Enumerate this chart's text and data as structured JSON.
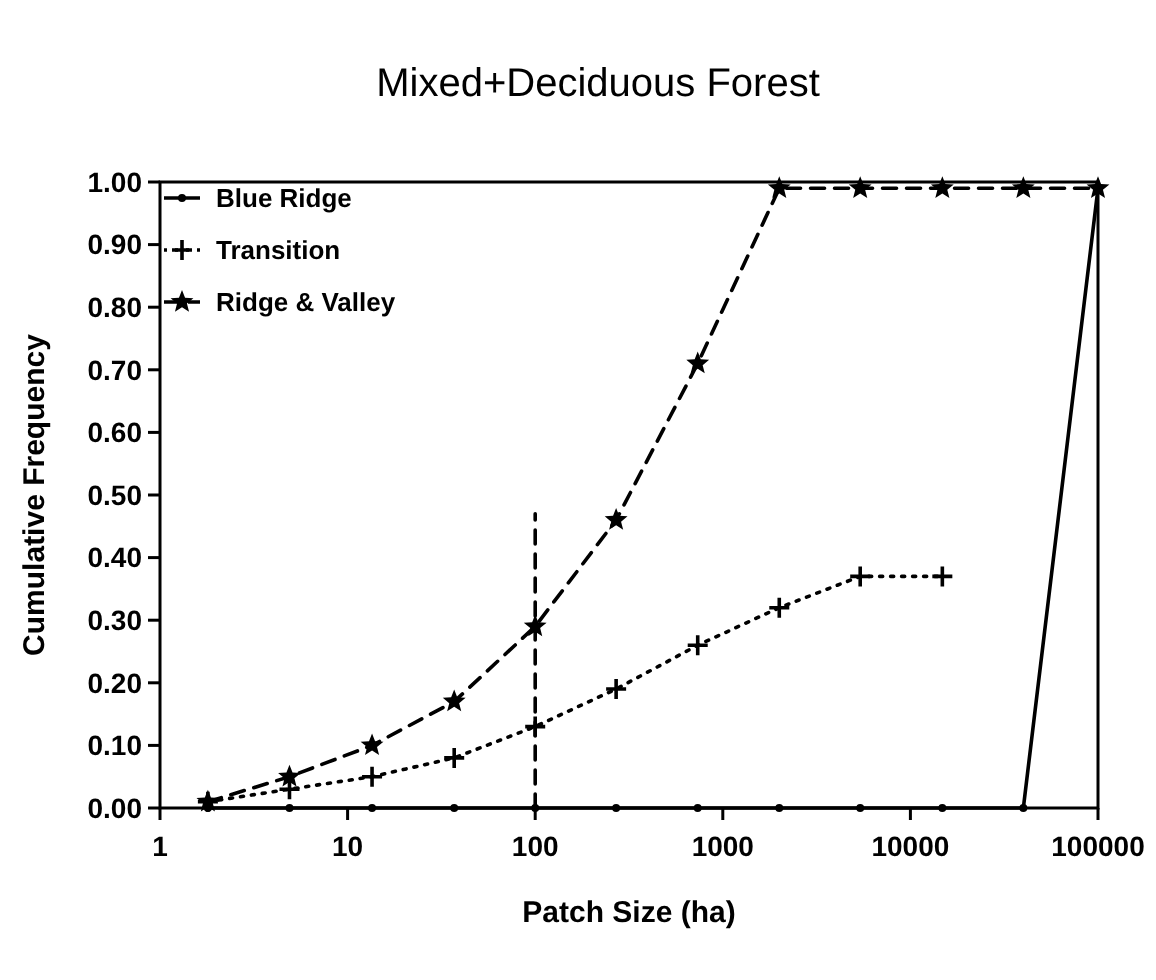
{
  "chart_data": {
    "type": "line",
    "title": "Mixed+Deciduous Forest",
    "xlabel": "Patch Size (ha)",
    "ylabel": "Cumulative Frequency",
    "log": "x",
    "xlim": [
      1,
      100000
    ],
    "xticks": [
      1,
      10,
      100,
      1000,
      10000,
      100000
    ],
    "ylim": [
      0,
      1
    ],
    "yticks": [
      {
        "value": 0,
        "label": "0.00"
      },
      {
        "value": 0.1,
        "label": "0.10"
      },
      {
        "value": 0.2,
        "label": "0.20"
      },
      {
        "value": 0.3,
        "label": "0.30"
      },
      {
        "value": 0.4,
        "label": "0.40"
      },
      {
        "value": 0.5,
        "label": "0.50"
      },
      {
        "value": 0.6,
        "label": "0.60"
      },
      {
        "value": 0.7,
        "label": "0.70"
      },
      {
        "value": 0.8,
        "label": "0.80"
      },
      {
        "value": 0.9,
        "label": "0.90"
      },
      {
        "value": 1,
        "label": "1.00"
      }
    ],
    "grid": false,
    "legend": "top left",
    "series": [
      {
        "name": "Blue Ridge",
        "color": "#000000",
        "marker": "circle",
        "line_style": "solid",
        "x": [
          1.8,
          4.9,
          13.5,
          37,
          100,
          270,
          735,
          2000,
          5400,
          14800,
          40000,
          100000
        ],
        "values": [
          0,
          0,
          0,
          0,
          0,
          0,
          0,
          0,
          0,
          0,
          0,
          0.99
        ]
      },
      {
        "name": "Transition",
        "color": "#000000",
        "marker": "cross",
        "line_style": "dotted",
        "x": [
          1.8,
          4.9,
          13.5,
          37,
          100,
          270,
          735,
          2000,
          5400,
          14800
        ],
        "values": [
          0.01,
          0.03,
          0.05,
          0.08,
          0.13,
          0.19,
          0.26,
          0.32,
          0.37,
          0.37
        ]
      },
      {
        "name": "Ridge & Valley",
        "color": "#000000",
        "marker": "star",
        "line_style": "dashed",
        "x": [
          1.8,
          4.9,
          13.5,
          37,
          100,
          270,
          735,
          2000,
          5400,
          14800,
          40000,
          100000
        ],
        "values": [
          0.01,
          0.05,
          0.1,
          0.17,
          0.29,
          0.46,
          0.71,
          0.99,
          0.99,
          0.99,
          0.99,
          0.99
        ]
      },
      {
        "color": "#000000",
        "marker": "none",
        "line_style": "dashed",
        "x": [
          100,
          100
        ],
        "values": [
          0,
          0.47
        ]
      }
    ]
  }
}
